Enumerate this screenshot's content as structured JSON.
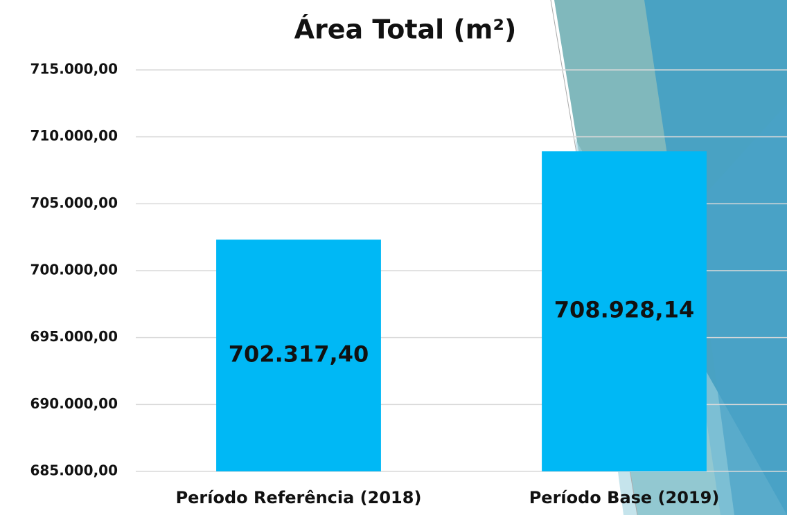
{
  "chart_data": {
    "type": "bar",
    "title": "Área Total (m²)",
    "categories": [
      "Período Referência (2018)",
      "Período Base (2019)"
    ],
    "values": [
      702317.4,
      708928.14
    ],
    "value_labels": [
      "702.317,40",
      "708.928,14"
    ],
    "color": "#00b8f5",
    "ylim": [
      685000,
      715000
    ],
    "yticks": [
      {
        "value": 685000,
        "label": "685.000,00"
      },
      {
        "value": 690000,
        "label": "690.000,00"
      },
      {
        "value": 695000,
        "label": "695.000,00"
      },
      {
        "value": 700000,
        "label": "700.000,00"
      },
      {
        "value": 705000,
        "label": "705.000,00"
      },
      {
        "value": 710000,
        "label": "710.000,00"
      },
      {
        "value": 715000,
        "label": "715.000,00"
      }
    ],
    "grid": true
  }
}
